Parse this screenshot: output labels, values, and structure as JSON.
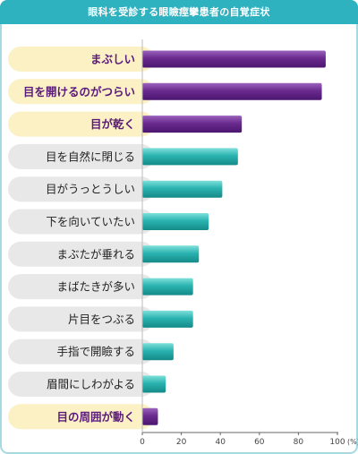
{
  "chart_data": {
    "type": "bar",
    "orientation": "horizontal",
    "title": "眼科を受診する眼瞼痙攣患者の自覚症状",
    "categories": [
      "まぶしい",
      "目を開けるのがつらい",
      "目が乾く",
      "目を自然に閉じる",
      "目がうっとうしい",
      "下を向いていたい",
      "まぶたが垂れる",
      "まばたきが多い",
      "片目をつぶる",
      "手指で開瞼する",
      "眉間にしわがよる",
      "目の周囲が動く"
    ],
    "values": [
      94,
      92,
      51,
      49,
      41,
      34,
      29,
      26,
      26,
      16,
      12,
      8
    ],
    "highlighted": [
      true,
      true,
      true,
      false,
      false,
      false,
      false,
      false,
      false,
      false,
      false,
      true
    ],
    "xlim": [
      0,
      100
    ],
    "xticks": [
      0,
      20,
      40,
      60,
      80,
      100
    ],
    "x_unit_label": "(%)",
    "grid": false,
    "legend": "none",
    "colors": {
      "highlight_bar": "#6a2a8e",
      "normal_bar": "#2ab3b0",
      "highlight_label_bg": "#fbf1c4",
      "normal_label_bg": "#e8e8e8",
      "highlight_text": "#5a1a7a",
      "normal_text": "#222222",
      "title_bar": "#2fb2bf"
    }
  }
}
